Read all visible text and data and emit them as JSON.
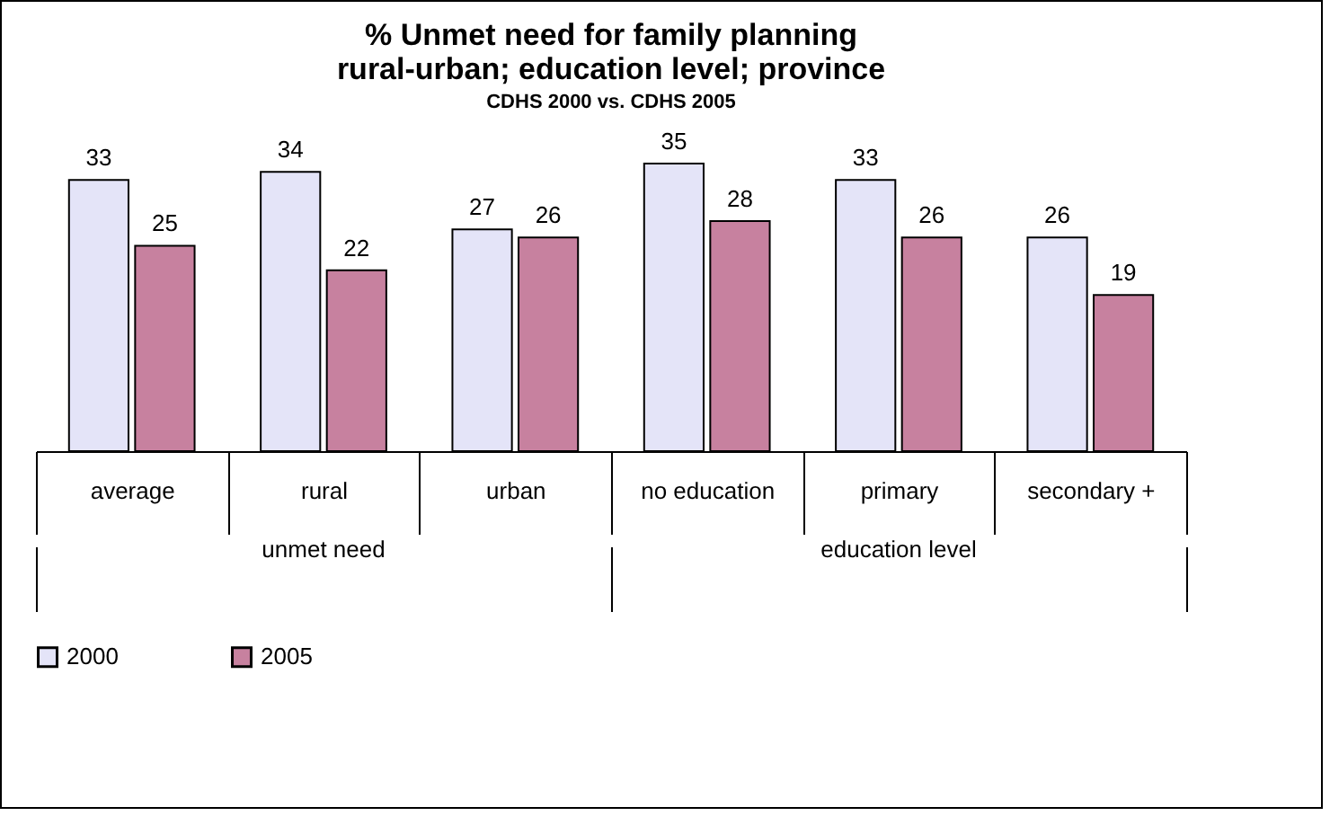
{
  "chart_data": {
    "type": "bar",
    "title": [
      "% Unmet need for family planning",
      "rural-urban; education level; province"
    ],
    "subtitle": "CDHS 2000 vs. CDHS 2005",
    "categories": [
      "average",
      "rural",
      "urban",
      "no education",
      "primary",
      "secondary +"
    ],
    "series": [
      {
        "name": "2000",
        "color": "#e4e4f8",
        "values": [
          33,
          34,
          27,
          35,
          33,
          26
        ]
      },
      {
        "name": "2005",
        "color": "#c7819f",
        "values": [
          25,
          22,
          26,
          28,
          26,
          19
        ]
      }
    ],
    "annotations": [
      "unmet need",
      "education level"
    ],
    "data_labels": true,
    "legend": "bottom",
    "grid": false
  }
}
